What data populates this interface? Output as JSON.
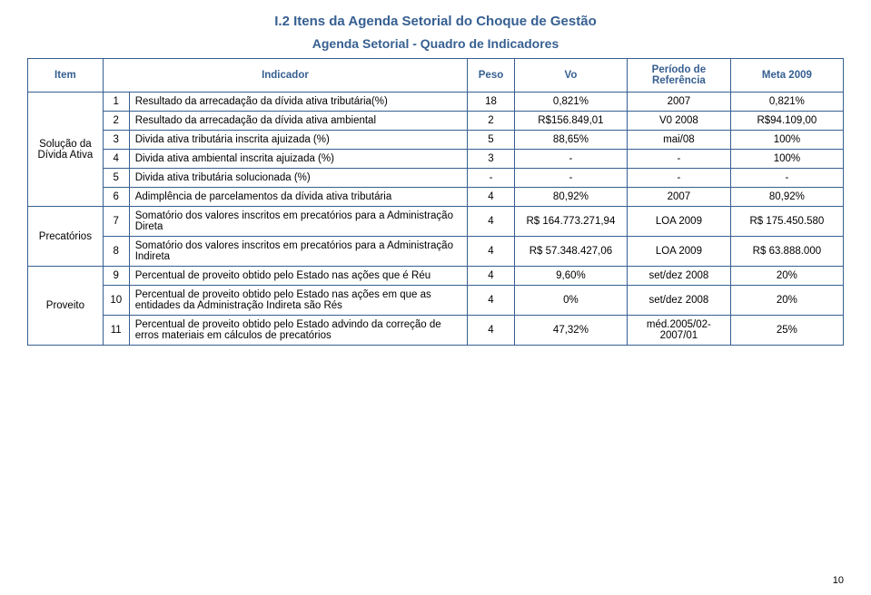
{
  "title": "I.2 Itens da Agenda Setorial do Choque de Gestão",
  "subtitle": "Agenda Setorial - Quadro de Indicadores",
  "headers": {
    "item": "Item",
    "indicador": "Indicador",
    "peso": "Peso",
    "vo": "Vo",
    "periodo": "Período de Referência",
    "meta": "Meta 2009"
  },
  "groups": [
    {
      "label": "Solução da Dívida Ativa",
      "rows": [
        {
          "n": "1",
          "ind": "Resultado da arrecadação da dívida ativa tributária(%)",
          "peso": "18",
          "vo": "0,821%",
          "per": "2007",
          "meta": "0,821%"
        },
        {
          "n": "2",
          "ind": "Resultado da arrecadação da dívida ativa ambiental",
          "peso": "2",
          "vo": "R$156.849,01",
          "per": "V0 2008",
          "meta": "R$94.109,00"
        },
        {
          "n": "3",
          "ind": "Divida ativa tributária inscrita ajuizada (%)",
          "peso": "5",
          "vo": "88,65%",
          "per": "mai/08",
          "meta": "100%"
        },
        {
          "n": "4",
          "ind": "Divida ativa ambiental inscrita ajuizada (%)",
          "peso": "3",
          "vo": "-",
          "per": "-",
          "meta": "100%"
        },
        {
          "n": "5",
          "ind": "Divida ativa tributária solucionada (%)",
          "peso": "-",
          "vo": "-",
          "per": "-",
          "meta": "-"
        },
        {
          "n": "6",
          "ind": "Adimplência de parcelamentos da dívida ativa tributária",
          "peso": "4",
          "vo": "80,92%",
          "per": "2007",
          "meta": "80,92%"
        }
      ]
    },
    {
      "label": "Precatórios",
      "rows": [
        {
          "n": "7",
          "ind": "Somatório dos valores inscritos em precatórios para a Administração Direta",
          "peso": "4",
          "vo": "R$ 164.773.271,94",
          "per": "LOA 2009",
          "meta": "R$ 175.450.580"
        },
        {
          "n": "8",
          "ind": "Somatório dos valores inscritos em precatórios para a Administração Indireta",
          "peso": "4",
          "vo": "R$ 57.348.427,06",
          "per": "LOA 2009",
          "meta": "R$  63.888.000"
        }
      ]
    },
    {
      "label": "Proveito",
      "rows": [
        {
          "n": "9",
          "ind": "Percentual de proveito obtido pelo Estado nas ações que é Réu",
          "peso": "4",
          "vo": "9,60%",
          "per": "set/dez 2008",
          "meta": "20%"
        },
        {
          "n": "10",
          "ind": "Percentual de proveito obtido pelo Estado nas ações em que as entidades da Administração Indireta são Rés",
          "peso": "4",
          "vo": "0%",
          "per": "set/dez 2008",
          "meta": "20%"
        },
        {
          "n": "11",
          "ind": "Percentual de proveito obtido pelo Estado advindo da correção de erros materiais em cálculos de precatórios",
          "peso": "4",
          "vo": "47,32%",
          "per": "méd.2005/02-2007/01",
          "meta": "25%"
        }
      ]
    }
  ],
  "page_number": "10",
  "style": {
    "header_color": "#365f91",
    "border_color": "#365f91",
    "background": "#ffffff",
    "font_family": "Arial",
    "title_fontsize": 15,
    "subtitle_fontsize": 14,
    "body_fontsize": 11.5
  }
}
